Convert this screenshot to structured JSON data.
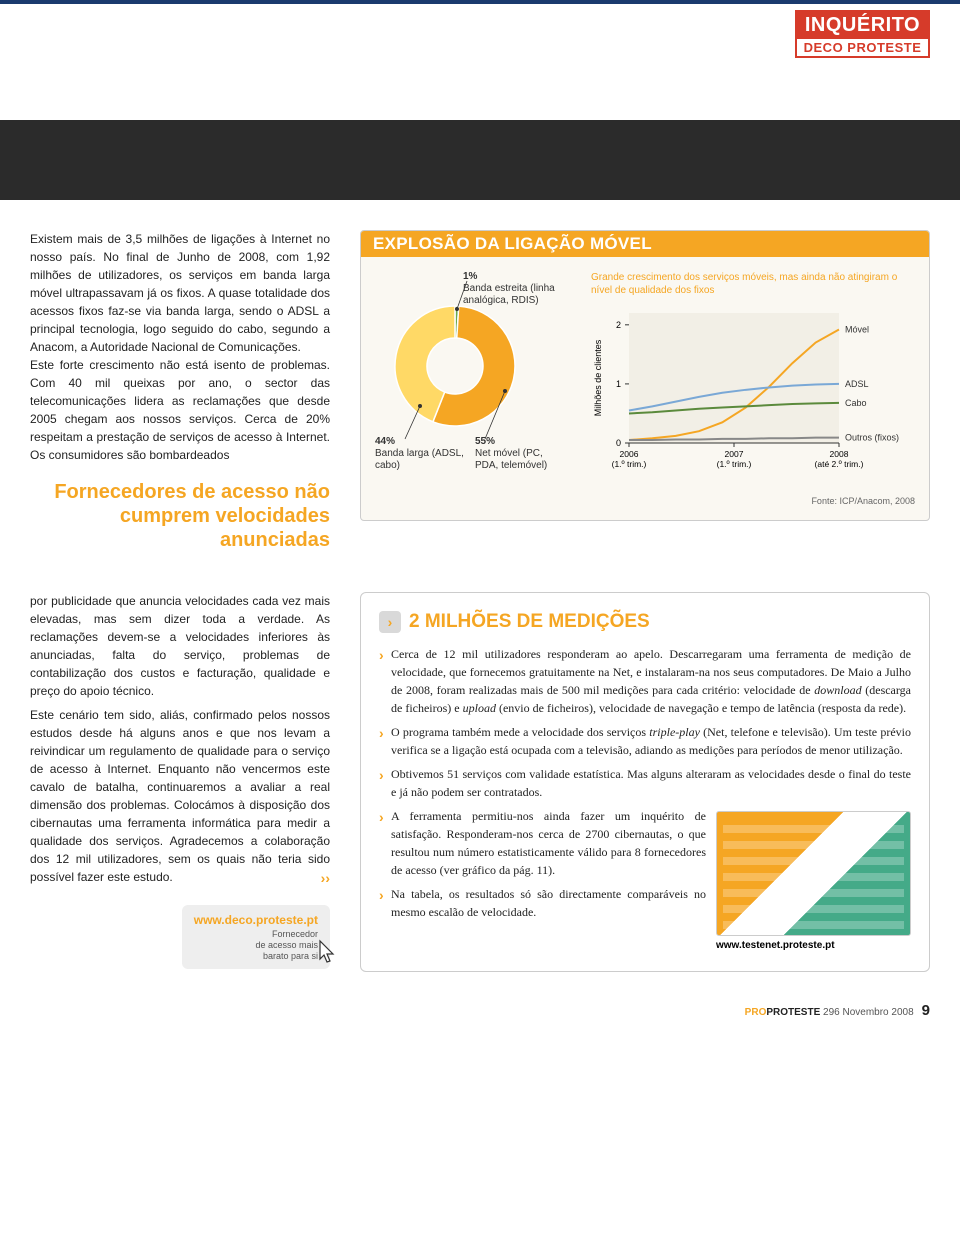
{
  "stamp": {
    "top": "INQUÉRITO",
    "bottom": "DECO PROTESTE"
  },
  "article": {
    "p1": "Existem mais de 3,5 milhões de ligações à Internet no nosso país. No final de Junho de 2008, com 1,92 milhões de utilizadores, os serviços em banda larga móvel ultrapassavam já os fixos. A quase totalidade dos acessos fixos faz-se via banda larga, sendo o ADSL a principal tecnologia, logo seguido do cabo, segundo a Anacom, a Autoridade Nacional de Comunicações.",
    "p2": "Este forte crescimento não está isento de problemas. Com 40 mil queixas por ano, o sector das telecomunicações lidera as reclamações que desde 2005 chegam aos nossos serviços. Cerca de 20% respeitam a prestação de serviços de acesso à Internet. Os consumidores são bombardeados",
    "pullquote": "Fornecedores de acesso não cumprem velocidades anunciadas",
    "p3": "por publicidade que anuncia velocidades cada vez mais elevadas, mas sem dizer toda a verdade. As reclamações devem-se a velocidades inferiores às anunciadas, falta do serviço, problemas de contabilização dos custos e facturação, qualidade e preço do apoio técnico.",
    "p4": "Este cenário tem sido, aliás, confirmado pelos nossos estudos desde há alguns anos e que nos levam a reivindicar um regulamento de qualidade para o serviço de acesso à Internet. Enquanto não vencermos este cavalo de batalha, continuaremos a avaliar a real dimensão dos problemas. Colocámos à disposição dos cibernautas uma ferramenta informática para medir a qualidade dos serviços. Agradecemos a colaboração dos 12 mil utilizadores, sem os quais não teria sido possível fazer este estudo.",
    "arrows": "››"
  },
  "linkbox": {
    "url": "www.deco.proteste.pt",
    "sub1": "Fornecedor",
    "sub2": "de acesso mais",
    "sub3": "barato para si"
  },
  "infocard": {
    "title": "EXPLOSÃO DA LIGAÇÃO MÓVEL",
    "donut": {
      "slices": [
        {
          "label": "1%",
          "sub": "Banda estreita (linha analógica, RDIS)",
          "pct": 1,
          "color": "#6aa84f"
        },
        {
          "label": "55%",
          "sub": "Net móvel (PC, PDA, telemóvel)",
          "pct": 55,
          "color": "#f5a623"
        },
        {
          "label": "44%",
          "sub": "Banda larga (ADSL, cabo)",
          "pct": 44,
          "color": "#ffd966"
        }
      ],
      "hole_color": "#ffffff"
    },
    "line": {
      "caption": "Grande crescimento dos serviços móveis, mas ainda não atingiram o nível de qualidade dos fixos",
      "ylabel": "Milhões de clientes",
      "ylim": [
        0,
        2.2
      ],
      "yticks": [
        0,
        1,
        2
      ],
      "xlabels": [
        "2006 (1.º trim.)",
        "2007 (1.º trim.)",
        "2008 (até 2.º trim.)"
      ],
      "bg": "#f2efe6",
      "grid": "#bbbbbb",
      "series": [
        {
          "name": "Móvel",
          "color": "#f5a623",
          "pts": [
            0.05,
            0.08,
            0.12,
            0.2,
            0.35,
            0.6,
            0.95,
            1.35,
            1.7,
            1.92
          ]
        },
        {
          "name": "ADSL",
          "color": "#7aa8d6",
          "pts": [
            0.55,
            0.62,
            0.7,
            0.78,
            0.85,
            0.9,
            0.94,
            0.97,
            0.99,
            1.0
          ]
        },
        {
          "name": "Cabo",
          "color": "#5b8a3c",
          "pts": [
            0.5,
            0.52,
            0.55,
            0.58,
            0.6,
            0.62,
            0.64,
            0.66,
            0.67,
            0.68
          ]
        },
        {
          "name": "Outros (fixos)",
          "color": "#888888",
          "pts": [
            0.05,
            0.05,
            0.06,
            0.06,
            0.07,
            0.07,
            0.08,
            0.08,
            0.09,
            0.09
          ]
        }
      ],
      "source": "Fonte: ICP/Anacom, 2008"
    }
  },
  "callout": {
    "title": "2 MILHÕES DE MEDIÇÕES",
    "items": [
      "Cerca de 12 mil utilizadores responderam ao apelo. Descarregaram uma ferramenta de medição de velocidade, que fornecemos gratuitamente na Net, e instalaram-na nos seus computadores. De Maio a Julho de 2008, foram realizadas mais de 500 mil medições para cada critério: velocidade de <em>download</em> (descarga de ficheiros) e <em>upload</em> (envio de ficheiros), velocidade de navegação e tempo de latência (resposta da rede).",
      "O programa também mede a velocidade dos serviços <em>triple-play</em> (Net, telefone e televisão). Um teste prévio verifica se a ligação está ocupada com a televisão, adiando as medições para períodos de menor utilização.",
      "Obtivemos 51 serviços com validade estatística. Mas alguns alteraram as velocidades desde o final do teste e já não podem ser contratados.",
      "A ferramenta permitiu-nos ainda fazer um inquérito de satisfação. Responderam-nos cerca de 2700 cibernautas, o que resultou num número estatisticamente válido para 8 fornecedores de acesso (ver gráfico da pág. 11).",
      "Na tabela, os resultados só são directamente comparáveis no mesmo escalão de velocidade."
    ],
    "img_url": "www.testenet.proteste.pt"
  },
  "footer": {
    "mag": "PROTESTE",
    "issue": "296 Novembro 2008",
    "page": "9"
  }
}
